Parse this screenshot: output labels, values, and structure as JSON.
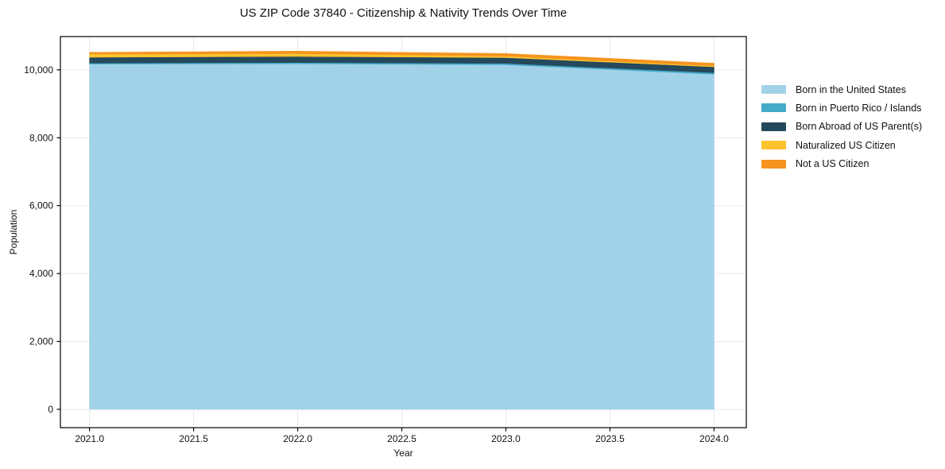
{
  "title": "US ZIP Code 37840 - Citizenship & Nativity Trends Over Time",
  "chart_data": {
    "type": "area",
    "stacked": true,
    "title": "US ZIP Code 37840 - Citizenship & Nativity Trends Over Time",
    "xlabel": "Year",
    "ylabel": "Population",
    "x": [
      2021,
      2022,
      2023,
      2024
    ],
    "series": [
      {
        "name": "Born in the United States",
        "color": "#a2d2e9",
        "values": [
          10170,
          10180,
          10150,
          9870
        ]
      },
      {
        "name": "Born in Puerto Rico / Islands",
        "color": "#45a9c8",
        "values": [
          30,
          35,
          40,
          45
        ]
      },
      {
        "name": "Born Abroad of US Parent(s)",
        "color": "#25495c",
        "values": [
          170,
          180,
          170,
          175
        ]
      },
      {
        "name": "Naturalized US Citizen",
        "color": "#fcc32f",
        "values": [
          95,
          85,
          45,
          25
        ]
      },
      {
        "name": "Not a US Citizen",
        "color": "#f5941f",
        "values": [
          50,
          70,
          75,
          80
        ]
      }
    ],
    "xlim": [
      2020.86,
      2024.155
    ],
    "ylim": [
      -540,
      10980
    ],
    "xticks": [
      2021.0,
      2021.5,
      2022.0,
      2022.5,
      2023.0,
      2023.5,
      2024.0
    ],
    "xtick_labels": [
      "2021.0",
      "2021.5",
      "2022.0",
      "2022.5",
      "2023.0",
      "2023.5",
      "2024.0"
    ],
    "yticks": [
      0,
      2000,
      4000,
      6000,
      8000,
      10000
    ],
    "ytick_labels": [
      "0",
      "2,000",
      "4,000",
      "6,000",
      "8,000",
      "10,000"
    ],
    "grid": true,
    "legend_position": "right of plot, no frame"
  },
  "colors": {
    "background": "#ffffff",
    "grid": "#e9e9e9",
    "spine": "#000000",
    "text": "#111111"
  }
}
